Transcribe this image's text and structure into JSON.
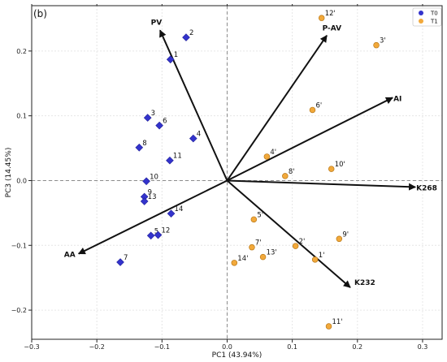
{
  "chart_data": {
    "type": "scatter",
    "panel_label": "(b)",
    "xlabel": "PC1 (43.94%)",
    "ylabel": "PC3 (14.45%)",
    "xlim": [
      -0.3,
      0.33
    ],
    "ylim": [
      -0.245,
      0.27
    ],
    "xticks": [
      -0.3,
      -0.2,
      -0.1,
      0.0,
      0.1,
      0.2,
      0.3
    ],
    "yticks": [
      -0.2,
      -0.1,
      0.0,
      0.1,
      0.2
    ],
    "xtick_labels": [
      "−0.3",
      "−0.2",
      "−0.1",
      "0.0",
      "0.1",
      "0.2",
      "0.3"
    ],
    "ytick_labels": [
      "−0.2",
      "−0.1",
      "0.0",
      "0.1",
      "0.2"
    ],
    "grid": true,
    "legend_position": "top-right",
    "series": [
      {
        "name": "T0",
        "color": "#3333cc",
        "marker": "diamond",
        "points": [
          {
            "label": "1",
            "x": -0.087,
            "y": 0.187
          },
          {
            "label": "2",
            "x": -0.063,
            "y": 0.221
          },
          {
            "label": "3",
            "x": -0.122,
            "y": 0.097
          },
          {
            "label": "4",
            "x": -0.052,
            "y": 0.065
          },
          {
            "label": "5",
            "x": -0.117,
            "y": -0.085
          },
          {
            "label": "6",
            "x": -0.104,
            "y": 0.085
          },
          {
            "label": "7",
            "x": -0.164,
            "y": -0.126
          },
          {
            "label": "8",
            "x": -0.135,
            "y": 0.051
          },
          {
            "label": "9",
            "x": -0.127,
            "y": -0.025
          },
          {
            "label": "10",
            "x": -0.124,
            "y": -0.001
          },
          {
            "label": "11",
            "x": -0.088,
            "y": 0.031
          },
          {
            "label": "12",
            "x": -0.106,
            "y": -0.084
          },
          {
            "label": "13",
            "x": -0.127,
            "y": -0.032
          },
          {
            "label": "14",
            "x": -0.086,
            "y": -0.051
          }
        ]
      },
      {
        "name": "T1",
        "color": "#f2a93b",
        "marker": "circle",
        "points": [
          {
            "label": "1'",
            "x": 0.135,
            "y": -0.122
          },
          {
            "label": "2'",
            "x": 0.105,
            "y": -0.101
          },
          {
            "label": "3'",
            "x": 0.229,
            "y": 0.209
          },
          {
            "label": "4'",
            "x": 0.061,
            "y": 0.037
          },
          {
            "label": "5'",
            "x": 0.041,
            "y": -0.06
          },
          {
            "label": "6'",
            "x": 0.131,
            "y": 0.109
          },
          {
            "label": "7'",
            "x": 0.038,
            "y": -0.103
          },
          {
            "label": "8'",
            "x": 0.089,
            "y": 0.007
          },
          {
            "label": "9'",
            "x": 0.172,
            "y": -0.09
          },
          {
            "label": "10'",
            "x": 0.16,
            "y": 0.018
          },
          {
            "label": "11'",
            "x": 0.156,
            "y": -0.225
          },
          {
            "label": "12'",
            "x": 0.145,
            "y": 0.251
          },
          {
            "label": "13'",
            "x": 0.055,
            "y": -0.118
          },
          {
            "label": "14'",
            "x": 0.011,
            "y": -0.127
          }
        ]
      }
    ],
    "loadings": [
      {
        "name": "PV",
        "x": -0.103,
        "y": 0.232
      },
      {
        "name": "P-AV",
        "x": 0.153,
        "y": 0.224
      },
      {
        "name": "AI",
        "x": 0.254,
        "y": 0.128
      },
      {
        "name": "K268",
        "x": 0.289,
        "y": -0.01
      },
      {
        "name": "K232",
        "x": 0.189,
        "y": -0.165
      },
      {
        "name": "AA",
        "x": -0.228,
        "y": -0.113
      }
    ]
  }
}
